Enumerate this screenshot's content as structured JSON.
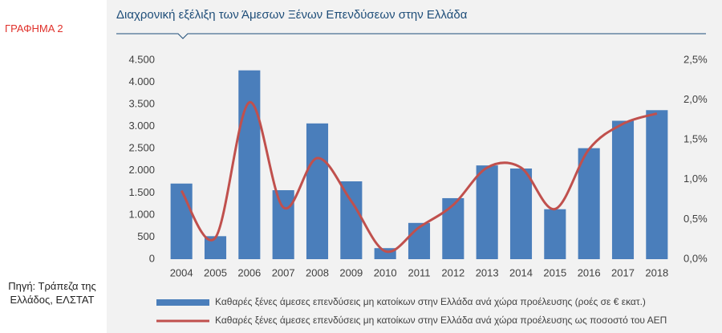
{
  "sidebar": {
    "label": "ΓΡΑΦΗΜΑ  2",
    "source": "Πηγή: Τράπεζα της Ελλάδος, ΕΛΣΤΑΤ"
  },
  "chart_data": {
    "type": "bar-line",
    "title": "Διαχρονική εξέλιξη των Άμεσων Ξένων Επενδύσεων στην Ελλάδα",
    "categories": [
      "2004",
      "2005",
      "2006",
      "2007",
      "2008",
      "2009",
      "2010",
      "2011",
      "2012",
      "2013",
      "2014",
      "2015",
      "2016",
      "2017",
      "2018"
    ],
    "series": [
      {
        "name": "Καθαρές ξένες άμεσες επενδύσεις μη κατοίκων στην Ελλάδα ανά χώρα προέλευσης (ροές σε € εκατ.)",
        "type": "bar",
        "color": "#4a7ebb",
        "values": [
          1710,
          520,
          4270,
          1560,
          3070,
          1760,
          250,
          820,
          1380,
          2120,
          2050,
          1130,
          2510,
          3130,
          3370
        ]
      },
      {
        "name": "Καθαρές ξένες άμεσες επενδύσεις μη κατοίκων στην Ελλάδα ανά χώρα προέλευσης ως ποσοστό του ΑΕΠ",
        "type": "line",
        "axis": "y2",
        "color": "#c0504d",
        "values": [
          0.86,
          0.27,
          1.97,
          0.65,
          1.27,
          0.73,
          0.1,
          0.4,
          0.68,
          1.15,
          1.15,
          0.63,
          1.38,
          1.7,
          1.83
        ]
      }
    ],
    "ylim": [
      0,
      4500
    ],
    "yticks": [
      0,
      {
        "value": 500,
        "label": "500"
      },
      {
        "value": 1000,
        "label": "1.000"
      },
      {
        "value": 1500,
        "label": "1.500"
      },
      {
        "value": 2000,
        "label": "2.000"
      },
      {
        "value": 2500,
        "label": "2.500"
      },
      {
        "value": 3000,
        "label": "3.000"
      },
      {
        "value": 3500,
        "label": "3.500"
      },
      {
        "value": 4000,
        "label": "4.000"
      },
      {
        "value": 4500,
        "label": "4.500"
      }
    ],
    "y2lim": [
      0,
      2.5
    ],
    "y2ticks": [
      {
        "value": 0,
        "label": "0,0%"
      },
      {
        "value": 0.5,
        "label": "0,5%"
      },
      {
        "value": 1,
        "label": "1,0%"
      },
      {
        "value": 1.5,
        "label": "1,5%"
      },
      {
        "value": 2,
        "label": "2,0%"
      },
      {
        "value": 2.5,
        "label": "2,5%"
      }
    ],
    "grid": false,
    "legend": "bottom"
  }
}
